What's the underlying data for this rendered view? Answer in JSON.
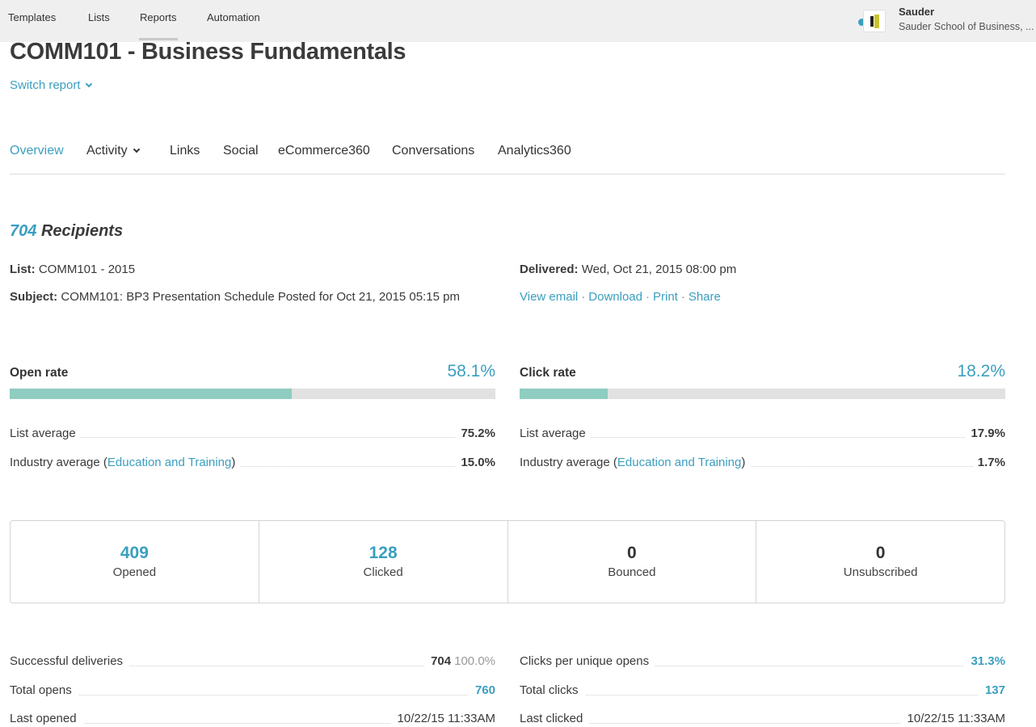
{
  "topnav": {
    "items": [
      "Templates",
      "Lists",
      "Reports",
      "Automation"
    ],
    "active": "Reports",
    "account_name": "Sauder",
    "account_org": "Sauder School of Business, ..."
  },
  "header": {
    "title": "COMM101 - Business Fundamentals",
    "switch_report": "Switch report"
  },
  "tabs": [
    "Overview",
    "Activity",
    "Links",
    "Social",
    "eCommerce360",
    "Conversations",
    "Analytics360"
  ],
  "summary": {
    "recipients_count": "704",
    "recipients_label": "Recipients",
    "list_label": "List:",
    "list_value": "COMM101 - 2015",
    "subject_label": "Subject:",
    "subject_value": "COMM101: BP3 Presentation Schedule Posted for Oct 21, 2015 05:15 pm",
    "delivered_label": "Delivered:",
    "delivered_value": "Wed, Oct 21, 2015 08:00 pm",
    "actions": [
      "View email",
      "Download",
      "Print",
      "Share"
    ]
  },
  "open_rate": {
    "label": "Open rate",
    "value": "58.1%",
    "fill_pct": 58.1,
    "list_average_label": "List average",
    "list_average": "75.2%",
    "industry_prefix": "Industry average (",
    "industry_link": "Education and Training",
    "industry_suffix": ")",
    "industry_average": "15.0%"
  },
  "click_rate": {
    "label": "Click rate",
    "value": "18.2%",
    "fill_pct": 18.2,
    "list_average_label": "List average",
    "list_average": "17.9%",
    "industry_prefix": "Industry average (",
    "industry_link": "Education and Training",
    "industry_suffix": ")",
    "industry_average": "1.7%"
  },
  "stats": [
    {
      "value": "409",
      "label": "Opened",
      "link": true
    },
    {
      "value": "128",
      "label": "Clicked",
      "link": true
    },
    {
      "value": "0",
      "label": "Bounced",
      "link": false
    },
    {
      "value": "0",
      "label": "Unsubscribed",
      "link": false
    }
  ],
  "details_left": {
    "deliveries_label": "Successful deliveries",
    "deliveries_value": "704",
    "deliveries_pct": "100.0%",
    "total_opens_label": "Total opens",
    "total_opens_value": "760",
    "last_opened_label": "Last opened",
    "last_opened_value": "10/22/15 11:33AM"
  },
  "details_right": {
    "cpuo_label": "Clicks per unique opens",
    "cpuo_value": "31.3%",
    "total_clicks_label": "Total clicks",
    "total_clicks_value": "137",
    "last_clicked_label": "Last clicked",
    "last_clicked_value": "10/22/15 11:33AM"
  },
  "colors": {
    "accent": "#3a9fbf",
    "bar_fill": "#8ecdbf",
    "bar_track": "#e1e1e1",
    "nav_bg": "#efefef"
  }
}
